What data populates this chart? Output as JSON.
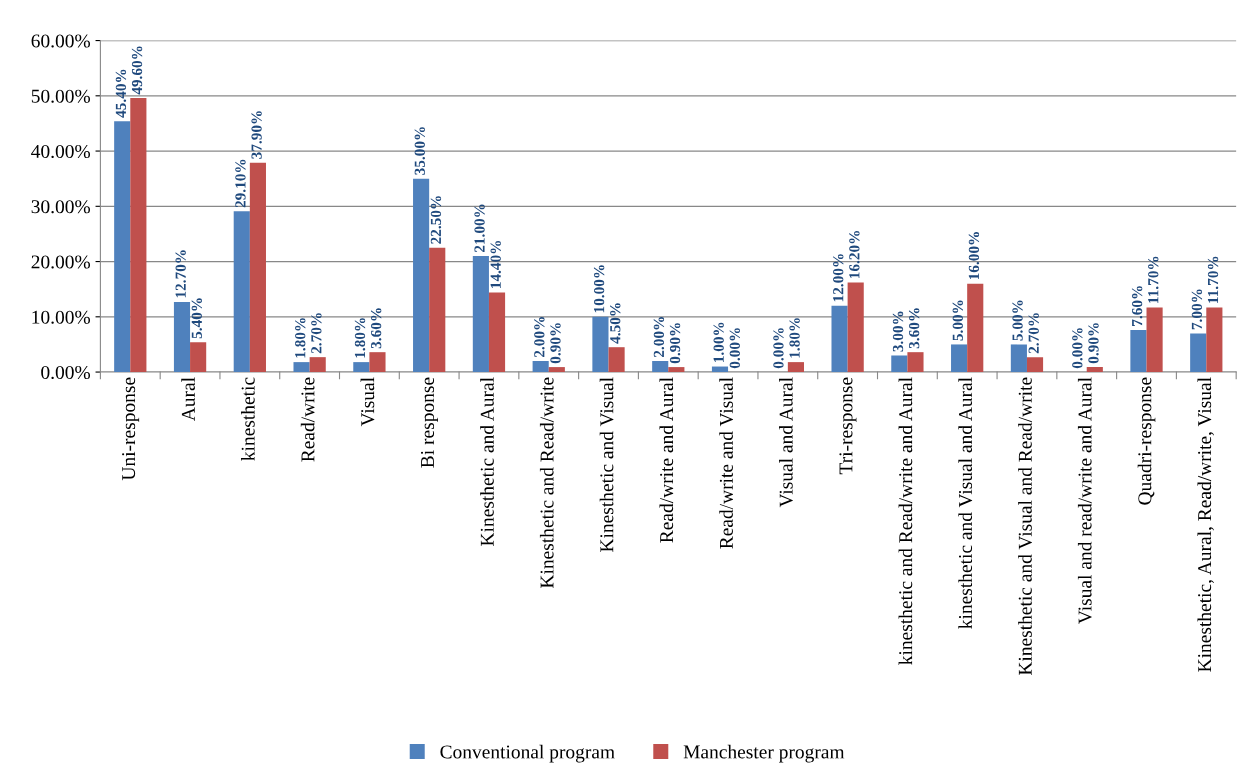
{
  "chart_data": {
    "type": "bar",
    "categories": [
      "Uni-response",
      "Aural",
      "kinesthetic",
      "Read/write",
      "Visual",
      "Bi response",
      "Kinesthetic and Aural",
      "Kinesthetic and Read/write",
      "Kinesthetic and Visual",
      "Read/write and Aural",
      "Read/write and Visual",
      "Visual and Aural",
      "Tri-response",
      "kinesthetic and Read/write and Aural",
      "kinesthetic and Visual and Aural",
      "Kinesthetic and Visual and Read/write",
      "Visual and read/write and Aural",
      "Quadri-response",
      "Kinesthetic, Aural, Read/write, Visual"
    ],
    "series": [
      {
        "name": "Conventional program",
        "color": "#4f81bd",
        "values": [
          45.4,
          12.7,
          29.1,
          1.8,
          1.8,
          35.0,
          21.0,
          2.0,
          10.0,
          2.0,
          1.0,
          0.0,
          12.0,
          3.0,
          5.0,
          5.0,
          0.0,
          7.6,
          7.0
        ],
        "value_labels": [
          "45.40%",
          "12.70%",
          "29.10%",
          "1.80%",
          "1.80%",
          "35.00%",
          "21.00%",
          "2.00%",
          "10.00%",
          "2.00%",
          "1.00%",
          "0.00%",
          "12.00%",
          "3.00%",
          "5.00%",
          "5.00%",
          "0.00%",
          "7.60%",
          "7.00%"
        ]
      },
      {
        "name": "Manchester program",
        "color": "#c0504d",
        "values": [
          49.6,
          5.4,
          37.9,
          2.7,
          3.6,
          22.5,
          14.4,
          0.9,
          4.5,
          0.9,
          0.0,
          1.8,
          16.2,
          3.6,
          16.0,
          2.7,
          0.9,
          11.7,
          11.7
        ],
        "value_labels": [
          "49.60%",
          "5.40%",
          "37.90%",
          "2.70%",
          "3.60%",
          "22.50%",
          "14.40%",
          "0.90%",
          "4.50%",
          "0.90%",
          "0.00%",
          "1.80%",
          "16.20%",
          "3.60%",
          "16.00%",
          "2.70%",
          "0.90%",
          "11.70%",
          "11.70%"
        ]
      }
    ],
    "ylim": [
      0,
      60
    ],
    "yticks": [
      {
        "value": 0,
        "label": "0.00%"
      },
      {
        "value": 10,
        "label": "10.00%"
      },
      {
        "value": 20,
        "label": "20.00%"
      },
      {
        "value": 30,
        "label": "30.00%"
      },
      {
        "value": 40,
        "label": "40.00%"
      },
      {
        "value": 50,
        "label": "50.00%"
      },
      {
        "value": 60,
        "label": "60.00%"
      }
    ],
    "grid": "y",
    "legend": "bottom"
  }
}
